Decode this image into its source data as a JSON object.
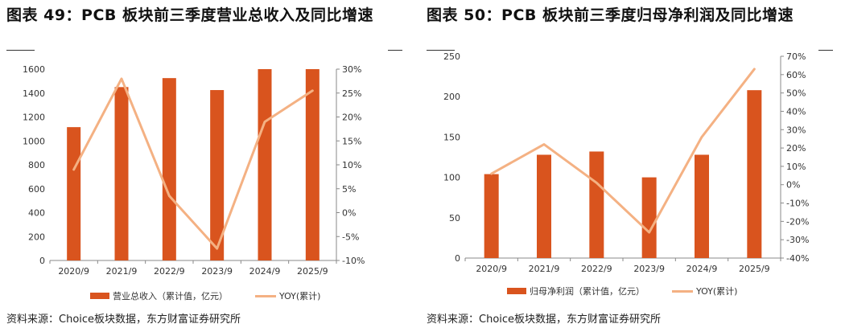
{
  "colors": {
    "bar": "#D9541E",
    "line": "#F4B183",
    "axis": "#888888",
    "text": "#333333"
  },
  "chart_data": [
    {
      "type": "bar",
      "title": "图表 49：PCB 板块前三季度营业总收入及同比增速",
      "categories": [
        "2020/9",
        "2021/9",
        "2022/9",
        "2023/9",
        "2024/9",
        "2025/9"
      ],
      "series": [
        {
          "name": "营业总收入（累计值，亿元）",
          "type": "bar",
          "axis": "left",
          "values": [
            1115,
            1450,
            1525,
            1425,
            1600,
            1600
          ]
        },
        {
          "name": "YOY(累计)",
          "type": "line",
          "axis": "right",
          "values": [
            9,
            28,
            3.5,
            -7.5,
            19,
            25.5
          ]
        }
      ],
      "ylim_left": [
        0,
        1600
      ],
      "yticks_left": [
        0,
        200,
        400,
        600,
        800,
        1000,
        1200,
        1400,
        1600
      ],
      "ylim_right": [
        -10,
        30
      ],
      "yticks_right": [
        "-10%",
        "-5%",
        "0%",
        "5%",
        "10%",
        "15%",
        "20%",
        "25%",
        "30%"
      ],
      "legend_position": "bottom"
    },
    {
      "type": "bar",
      "title": "图表 50：PCB 板块前三季度归母净利润及同比增速",
      "categories": [
        "2020/9",
        "2021/9",
        "2022/9",
        "2023/9",
        "2024/9",
        "2025/9"
      ],
      "series": [
        {
          "name": "归母净利润（累计值，亿元）",
          "type": "bar",
          "axis": "left",
          "values": [
            104,
            128,
            132,
            100,
            128,
            208
          ]
        },
        {
          "name": "YOY(累计)",
          "type": "line",
          "axis": "right",
          "values": [
            6,
            22,
            1,
            -26,
            26,
            63
          ]
        }
      ],
      "ylim_left": [
        0,
        250
      ],
      "yticks_left": [
        0,
        50,
        100,
        150,
        200,
        250
      ],
      "ylim_right": [
        -40,
        70
      ],
      "yticks_right": [
        "-40%",
        "-30%",
        "-20%",
        "-10%",
        "0%",
        "10%",
        "20%",
        "30%",
        "40%",
        "50%",
        "60%",
        "70%"
      ],
      "legend_position": "bottom"
    }
  ],
  "source_left": "资料来源：Choice板块数据，东方财富证券研究所",
  "source_right": "资料来源：Choice板块数据，东方财富证券研究所"
}
